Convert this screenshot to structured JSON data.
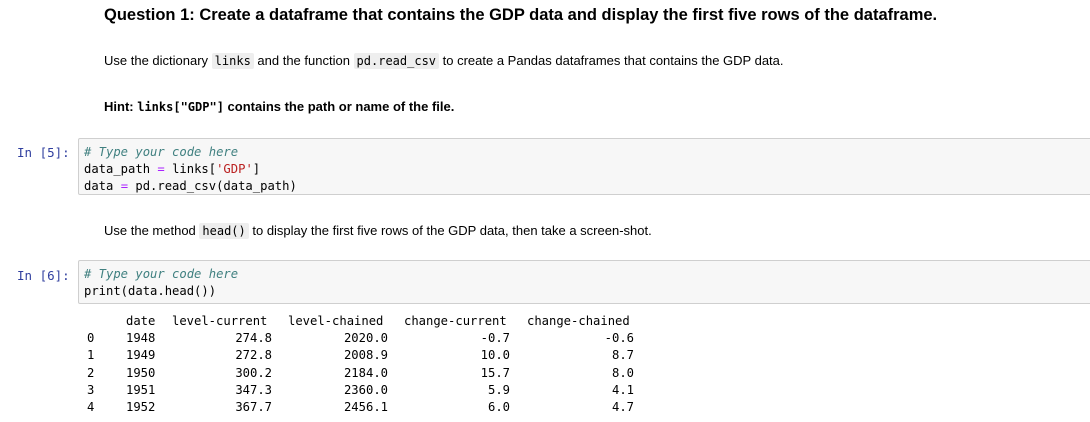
{
  "question": {
    "title": "Question 1: Create a dataframe that contains the GDP data and display the first five rows of the dataframe."
  },
  "instruction1": {
    "pre": "Use the dictionary ",
    "code1": "links",
    "mid": " and the function ",
    "code2": "pd.read_csv",
    "post": " to create a Pandas dataframes that contains the GDP data."
  },
  "hint": {
    "label": "Hint: ",
    "code": "links[\"GDP\"]",
    "post": " contains the path or name of the file."
  },
  "cell5": {
    "prompt": "In [5]:",
    "comment": "# Type your code here",
    "line2_var": "data_path",
    "line2_op": " = ",
    "line2_call": "links[",
    "line2_str": "'GDP'",
    "line2_close": "]",
    "line3_var": "data",
    "line3_op": " = ",
    "line3_call": "pd.read_csv(data_path)"
  },
  "instruction2": {
    "pre": "Use the method ",
    "code": "head()",
    "post": " to display the first five rows of the GDP data, then take a screen-shot."
  },
  "cell6": {
    "prompt": "In [6]:",
    "comment": "# Type your code here",
    "line2": "print(data.head())"
  },
  "output": {
    "columns": [
      "date",
      "level-current",
      "level-chained",
      "change-current",
      "change-chained"
    ],
    "rows": [
      {
        "index": "0",
        "date": "1948",
        "level_current": "274.8",
        "level_chained": "2020.0",
        "change_current": "-0.7",
        "change_chained": "-0.6"
      },
      {
        "index": "1",
        "date": "1949",
        "level_current": "272.8",
        "level_chained": "2008.9",
        "change_current": "10.0",
        "change_chained": "8.7"
      },
      {
        "index": "2",
        "date": "1950",
        "level_current": "300.2",
        "level_chained": "2184.0",
        "change_current": "15.7",
        "change_chained": "8.0"
      },
      {
        "index": "3",
        "date": "1951",
        "level_current": "347.3",
        "level_chained": "2360.0",
        "change_current": "5.9",
        "change_chained": "4.1"
      },
      {
        "index": "4",
        "date": "1952",
        "level_current": "367.7",
        "level_chained": "2456.1",
        "change_current": "6.0",
        "change_chained": "4.7"
      }
    ]
  }
}
